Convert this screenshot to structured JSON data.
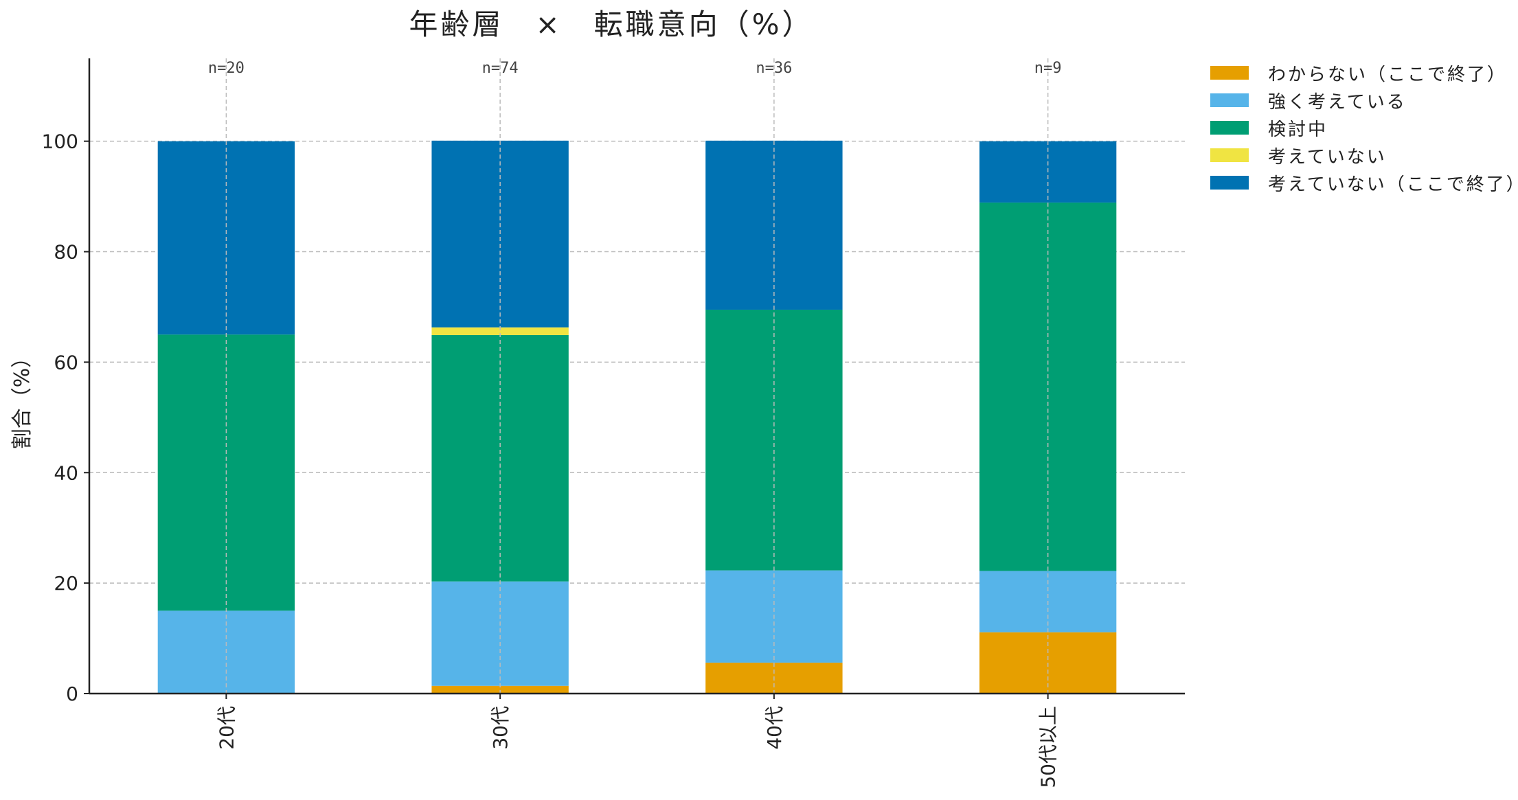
{
  "chart_data": {
    "type": "bar",
    "stacked": true,
    "title": "年齢層　×　転職意向（%）",
    "xlabel": "",
    "ylabel": "割合（%）",
    "ylim": [
      0,
      115
    ],
    "yticks": [
      0,
      20,
      40,
      60,
      80,
      100
    ],
    "grid": true,
    "legend_position": "top-right-outside",
    "categories": [
      "20代",
      "30代",
      "40代",
      "50代以上"
    ],
    "n_labels": [
      "n=20",
      "n=74",
      "n=36",
      "n=9"
    ],
    "series": [
      {
        "name": "わからない（ここで終了）",
        "color": "#E69F00",
        "values": [
          0,
          1.4,
          5.6,
          11.1
        ]
      },
      {
        "name": "強く考えている",
        "color": "#56B4E9",
        "values": [
          15.0,
          18.9,
          16.7,
          11.1
        ]
      },
      {
        "name": "検討中",
        "color": "#009E73",
        "values": [
          50.0,
          44.6,
          47.2,
          66.7
        ]
      },
      {
        "name": "考えていない",
        "color": "#F0E442",
        "values": [
          0,
          1.4,
          0,
          0
        ]
      },
      {
        "name": "考えていない（ここで終了）",
        "color": "#0072B2",
        "values": [
          35.0,
          33.8,
          30.6,
          11.1
        ]
      }
    ]
  }
}
